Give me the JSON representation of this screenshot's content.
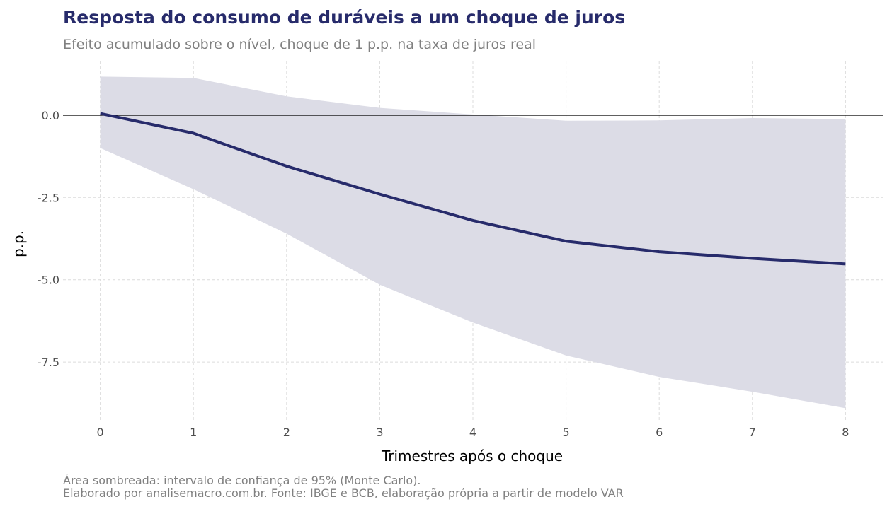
{
  "title": "Resposta do consumo de duráveis a um choque de juros",
  "subtitle": "Efeito acumulado sobre o nível, choque de 1 p.p. na taxa de juros real",
  "captions": [
    "Área sombreada: intervalo de confiança de 95% (Monte Carlo).",
    "Elaborado por analisemacro.com.br. Fonte: IBGE e BCB, elaboração própria a partir de modelo VAR"
  ],
  "colors": {
    "line": "#272b6b",
    "band": "#dcdce6",
    "zero_line": "#000000",
    "grid": "#dcdcdc"
  },
  "chart_data": {
    "type": "line",
    "title": "Resposta do consumo de duráveis a um choque de juros",
    "subtitle": "Efeito acumulado sobre o nível, choque de 1 p.p. na taxa de juros real",
    "xlabel": "Trimestres após o choque",
    "ylabel": "p.p.",
    "x": [
      0,
      1,
      2,
      3,
      4,
      5,
      6,
      7,
      8
    ],
    "x_tick_labels": [
      "0",
      "1",
      "2",
      "3",
      "4",
      "5",
      "6",
      "7",
      "8"
    ],
    "y_tick_values": [
      0.0,
      -2.5,
      -5.0,
      -7.5
    ],
    "y_tick_labels": [
      "0.0",
      "-2.5",
      "-5.0",
      "-7.5"
    ],
    "xlim": [
      -0.4,
      8.4
    ],
    "ylim": [
      -9.3,
      1.65
    ],
    "series": [
      {
        "values": [
          0.05,
          -0.55,
          -1.55,
          -2.4,
          -3.2,
          -3.83,
          -4.15,
          -4.35,
          -4.52
        ]
      }
    ],
    "band": {
      "upper": [
        1.17,
        1.13,
        0.57,
        0.22,
        0.02,
        -0.17,
        -0.16,
        -0.09,
        -0.12
      ],
      "lower": [
        -1.0,
        -2.25,
        -3.6,
        -5.15,
        -6.3,
        -7.3,
        -7.95,
        -8.4,
        -8.9
      ]
    },
    "reference_line_y": 0,
    "grid": true,
    "legend": "none"
  }
}
